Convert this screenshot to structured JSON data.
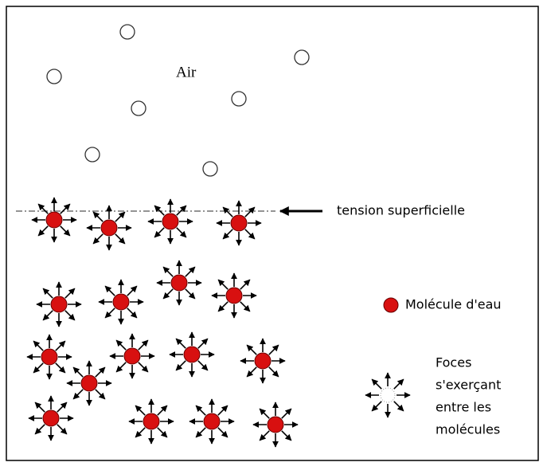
{
  "labels": {
    "air": "Air",
    "surface_tension": "tension superficielle"
  },
  "legend": {
    "molecule": "Molécule d'eau",
    "forces": [
      "Foces",
      "s'exerçant",
      "entre les",
      "molécules"
    ]
  }
}
